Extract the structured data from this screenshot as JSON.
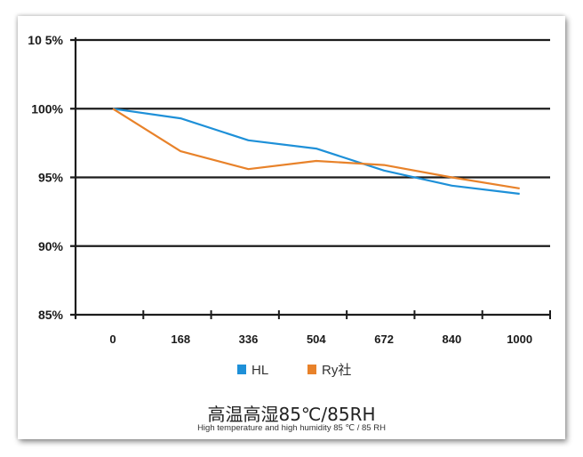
{
  "chart_data": {
    "type": "line",
    "title": "高温高湿85℃/85RH",
    "subtitle": "High temperature and high humidity 85 ℃ / 85 RH",
    "xlabel": "",
    "ylabel": "",
    "categories": [
      "0",
      "168",
      "336",
      "504",
      "672",
      "840",
      "1000"
    ],
    "y_ticks": [
      "10 5%",
      "100%",
      "95%",
      "90%",
      "85%"
    ],
    "ylim": [
      85,
      105
    ],
    "grid": true,
    "legend_position": "bottom",
    "series": [
      {
        "name": "HL",
        "color": "#1e90d8",
        "values": [
          100,
          99.3,
          97.7,
          97.1,
          95.5,
          94.4,
          93.8
        ]
      },
      {
        "name": "Ry社",
        "color": "#e8822a",
        "values": [
          100,
          96.9,
          95.6,
          96.2,
          95.9,
          95.0,
          94.2
        ]
      }
    ]
  },
  "legend": {
    "hl_label": "HL",
    "ry_label": "Ry社"
  },
  "titles": {
    "cn": "高温高湿85℃/85RH",
    "en": "High temperature and high humidity 85 ℃ / 85 RH"
  }
}
